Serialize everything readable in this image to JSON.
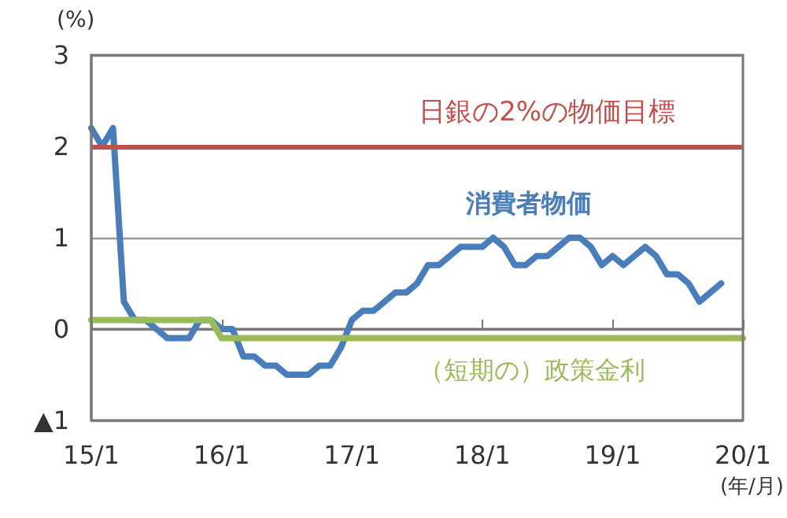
{
  "chart_data": {
    "type": "line",
    "ylabel": "(%)",
    "xlabel": "(年/月)",
    "categories": [
      "15/1",
      null,
      null,
      null,
      null,
      null,
      null,
      null,
      null,
      null,
      null,
      null,
      "16/1",
      null,
      null,
      null,
      null,
      null,
      null,
      null,
      null,
      null,
      null,
      null,
      "17/1",
      null,
      null,
      null,
      null,
      null,
      null,
      null,
      null,
      null,
      null,
      null,
      "18/1",
      null,
      null,
      null,
      null,
      null,
      null,
      null,
      null,
      null,
      null,
      null,
      "19/1",
      null,
      null,
      null,
      null,
      null,
      null,
      null,
      null,
      null,
      null,
      null,
      "20/1"
    ],
    "ylim": [
      -1,
      3
    ],
    "yticks": [
      {
        "value": -1,
        "label": "▲1"
      },
      0,
      1,
      2,
      3
    ],
    "grid": "y",
    "marker": "none",
    "line_style": "solid",
    "series": [
      {
        "name": "消費者物価",
        "color": "#4a7ebb",
        "values": [
          2.2,
          2.0,
          2.2,
          0.3,
          0.1,
          0.1,
          0.0,
          -0.1,
          -0.1,
          -0.1,
          0.1,
          0.1,
          0.0,
          0.0,
          -0.3,
          -0.3,
          -0.4,
          -0.4,
          -0.5,
          -0.5,
          -0.5,
          -0.4,
          -0.4,
          -0.2,
          0.1,
          0.2,
          0.2,
          0.3,
          0.4,
          0.4,
          0.5,
          0.7,
          0.7,
          0.8,
          0.9,
          0.9,
          0.9,
          1.0,
          0.9,
          0.7,
          0.7,
          0.8,
          0.8,
          0.9,
          1.0,
          1.0,
          0.9,
          0.7,
          0.8,
          0.7,
          0.8,
          0.9,
          0.8,
          0.6,
          0.6,
          0.5,
          0.3,
          0.4,
          0.5,
          null,
          null
        ]
      },
      {
        "name": "（短期の）政策金利",
        "color": "#9bbb59",
        "values": [
          0.1,
          0.1,
          0.1,
          0.1,
          0.1,
          0.1,
          0.1,
          0.1,
          0.1,
          0.1,
          0.1,
          0.1,
          -0.1,
          -0.1,
          -0.1,
          -0.1,
          -0.1,
          -0.1,
          -0.1,
          -0.1,
          -0.1,
          -0.1,
          -0.1,
          -0.1,
          -0.1,
          -0.1,
          -0.1,
          -0.1,
          -0.1,
          -0.1,
          -0.1,
          -0.1,
          -0.1,
          -0.1,
          -0.1,
          -0.1,
          -0.1,
          -0.1,
          -0.1,
          -0.1,
          -0.1,
          -0.1,
          -0.1,
          -0.1,
          -0.1,
          -0.1,
          -0.1,
          -0.1,
          -0.1,
          -0.1,
          -0.1,
          -0.1,
          -0.1,
          -0.1,
          -0.1,
          -0.1,
          -0.1,
          -0.1,
          -0.1,
          -0.1,
          -0.1
        ]
      }
    ],
    "ref_lines": [
      {
        "axis": "y",
        "value": 2,
        "label": "日銀の2%の物価目標",
        "color": "#c0504d",
        "line_style": "solid"
      }
    ]
  }
}
